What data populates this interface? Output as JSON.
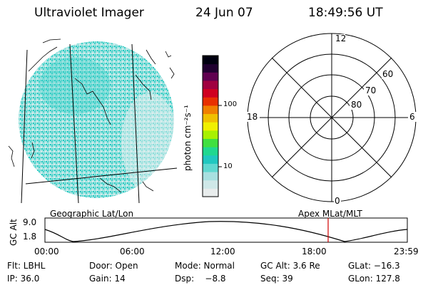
{
  "header": {
    "instrument": "Ultraviolet Imager",
    "date": "24 Jun 07",
    "time": "18:49:56 UT"
  },
  "colorbar": {
    "label": "photon cm⁻²s⁻¹",
    "ticks": [
      "100",
      "10"
    ],
    "colors": [
      "#e8ecec",
      "#cfe8e8",
      "#a8e0e0",
      "#60d8d0",
      "#20c8c0",
      "#20d890",
      "#40e040",
      "#a8f000",
      "#f0f000",
      "#f0c000",
      "#f08000",
      "#e83000",
      "#d00020",
      "#a00040",
      "#600050",
      "#200030",
      "#000010"
    ]
  },
  "polar": {
    "clock_labels": [
      "12",
      "18",
      "6",
      "0"
    ],
    "lat_labels": [
      "60",
      "70",
      "80"
    ]
  },
  "projection": {
    "left_label": "Geographic Lat/Lon",
    "right_label": "Apex MLat/MLT"
  },
  "altitude_plot": {
    "axis_label": "GC Alt",
    "y_ticks": [
      "9.0",
      "1.8"
    ],
    "x_ticks": [
      "00:00",
      "06:00",
      "12:00",
      "18:00",
      "23:59"
    ],
    "marker_color": "#d00000"
  },
  "info": {
    "row1": {
      "flt": "Flt: LBHL",
      "door": "Door: Open",
      "mode": "Mode: Normal",
      "gcalt": "GC Alt: 3.6 Re",
      "glat": "GLat: −16.3"
    },
    "row2": {
      "ip": "IP: 36.0",
      "gain": "Gain: 14",
      "dsp": "Dsp:    −8.8",
      "seq": "Seq: 39",
      "glon": "GLon: 127.8"
    }
  }
}
